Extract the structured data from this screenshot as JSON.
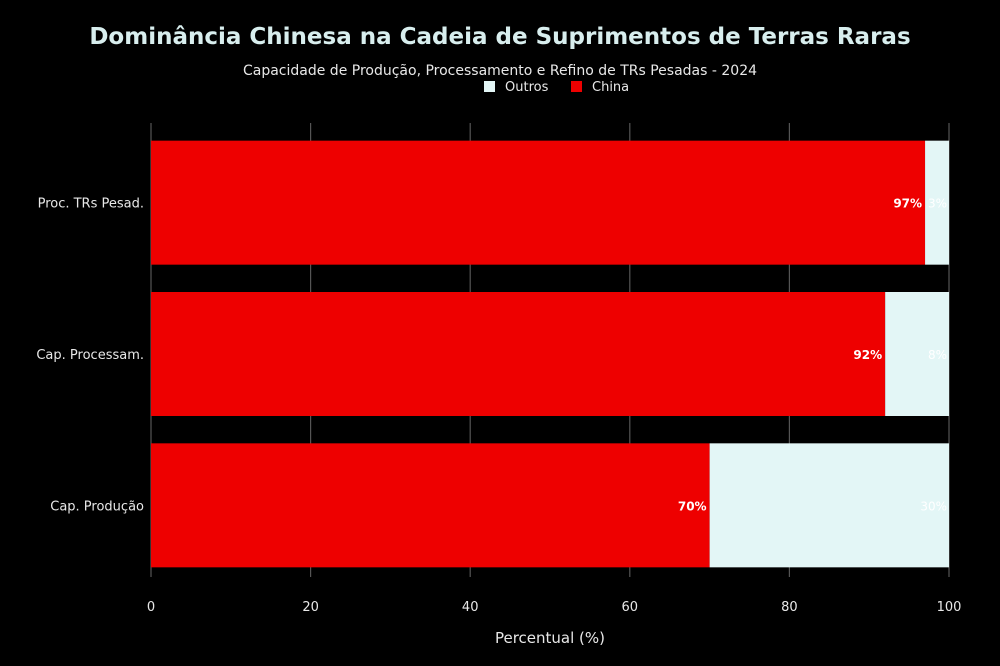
{
  "chart_data": {
    "type": "bar",
    "orientation": "horizontal",
    "stacked": true,
    "title": "Dominância Chinesa na Cadeia de Suprimentos de Terras Raras",
    "subtitle": "Capacidade de Produção, Processamento e Refino de TRs Pesadas - 2024",
    "xlabel": "Percentual (%)",
    "ylabel": "",
    "xlim": [
      0,
      100
    ],
    "xticks": [
      0,
      20,
      40,
      60,
      80,
      100
    ],
    "categories": [
      "Proc. TRs Pesad.",
      "Cap. Processam.",
      "Cap. Produção"
    ],
    "series": [
      {
        "name": "China",
        "color": "#ee0000",
        "values": [
          97,
          92,
          70
        ],
        "labels": [
          "97%",
          "92%",
          "70%"
        ]
      },
      {
        "name": "Outros",
        "color": "#e3f6f6",
        "values": [
          3,
          8,
          30
        ],
        "labels": [
          "3%",
          "8%",
          "30%"
        ]
      }
    ],
    "legend": {
      "placement": "top-center",
      "order": [
        "Outros",
        "China"
      ]
    },
    "grid": true
  }
}
